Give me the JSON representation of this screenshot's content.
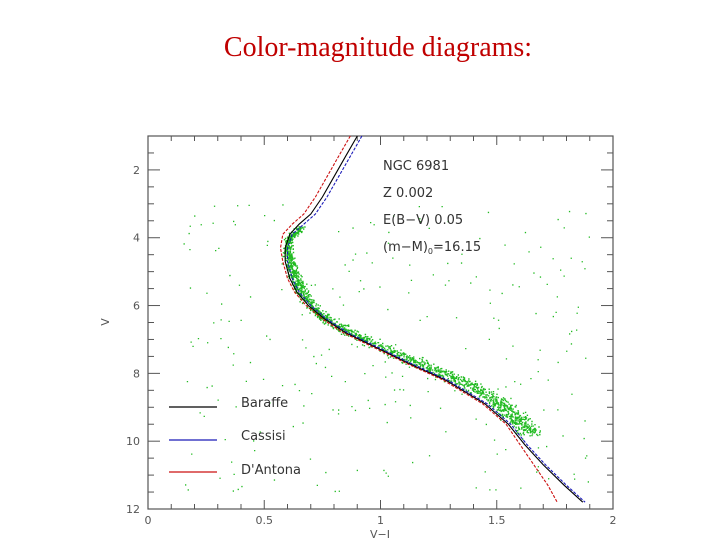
{
  "slide": {
    "title": "Color-magnitude diagrams:"
  },
  "chart_data": {
    "type": "scatter",
    "title": "",
    "xlabel": "V−I",
    "ylabel": "V",
    "xlim": [
      0,
      2
    ],
    "ylim": [
      12,
      1
    ],
    "y_inverted": true,
    "x_ticks": [
      "0",
      "0.5",
      "1",
      "1.5",
      "2"
    ],
    "y_ticks": [
      "2",
      "4",
      "6",
      "8",
      "10",
      "12"
    ],
    "annotations": {
      "cluster": "NGC 6981",
      "metallicity": "Z 0.002",
      "reddening": "E(B−V) 0.05",
      "distance_modulus_prefix": "(m−M)",
      "distance_modulus_sub": "0",
      "distance_modulus_value": "=16.15"
    },
    "legend_placement": "bottom-left",
    "points_color": "#22bb22",
    "stars_ridge": {
      "x": [
        0.66,
        0.62,
        0.6,
        0.6,
        0.61,
        0.62,
        0.64,
        0.66,
        0.7,
        0.75,
        0.82,
        0.9,
        1.0,
        1.1,
        1.2,
        1.3,
        1.4,
        1.5,
        1.55,
        1.6,
        1.65
      ],
      "y": [
        3.7,
        3.9,
        4.1,
        4.4,
        4.7,
        5.0,
        5.3,
        5.6,
        6.0,
        6.3,
        6.6,
        6.9,
        7.2,
        7.5,
        7.8,
        8.1,
        8.4,
        8.8,
        9.1,
        9.4,
        9.8
      ]
    },
    "series": [
      {
        "name": "Baraffe",
        "color": "#000000",
        "x": [
          0.9,
          0.85,
          0.8,
          0.75,
          0.7,
          0.65,
          0.61,
          0.59,
          0.59,
          0.61,
          0.64,
          0.69,
          0.76,
          0.85,
          0.97,
          1.12,
          1.28,
          1.45,
          1.55,
          1.62,
          1.7,
          1.79,
          1.87
        ],
        "y": [
          1.0,
          1.6,
          2.2,
          2.8,
          3.3,
          3.6,
          3.9,
          4.3,
          4.7,
          5.2,
          5.6,
          6.0,
          6.4,
          6.8,
          7.2,
          7.7,
          8.2,
          8.9,
          9.5,
          10.1,
          10.7,
          11.3,
          11.8
        ]
      },
      {
        "name": "Cassisi",
        "color": "#1a1ab8",
        "x": [
          0.92,
          0.87,
          0.82,
          0.77,
          0.72,
          0.67,
          0.62,
          0.6,
          0.6,
          0.62,
          0.65,
          0.7,
          0.77,
          0.86,
          0.98,
          1.13,
          1.29,
          1.46,
          1.56,
          1.63,
          1.71,
          1.8,
          1.88
        ],
        "y": [
          1.0,
          1.6,
          2.2,
          2.8,
          3.3,
          3.6,
          3.9,
          4.3,
          4.7,
          5.2,
          5.6,
          6.0,
          6.4,
          6.8,
          7.2,
          7.7,
          8.2,
          8.9,
          9.5,
          10.1,
          10.7,
          11.3,
          11.8
        ]
      },
      {
        "name": "D'Antona",
        "color": "#cc1111",
        "x": [
          0.87,
          0.82,
          0.77,
          0.72,
          0.67,
          0.62,
          0.58,
          0.57,
          0.58,
          0.6,
          0.63,
          0.68,
          0.75,
          0.84,
          0.96,
          1.11,
          1.27,
          1.44,
          1.54,
          1.6,
          1.66,
          1.72,
          1.76
        ],
        "y": [
          1.0,
          1.6,
          2.2,
          2.8,
          3.3,
          3.6,
          3.9,
          4.3,
          4.7,
          5.2,
          5.6,
          6.0,
          6.4,
          6.8,
          7.2,
          7.7,
          8.2,
          8.9,
          9.5,
          10.1,
          10.7,
          11.3,
          11.8
        ]
      }
    ]
  }
}
